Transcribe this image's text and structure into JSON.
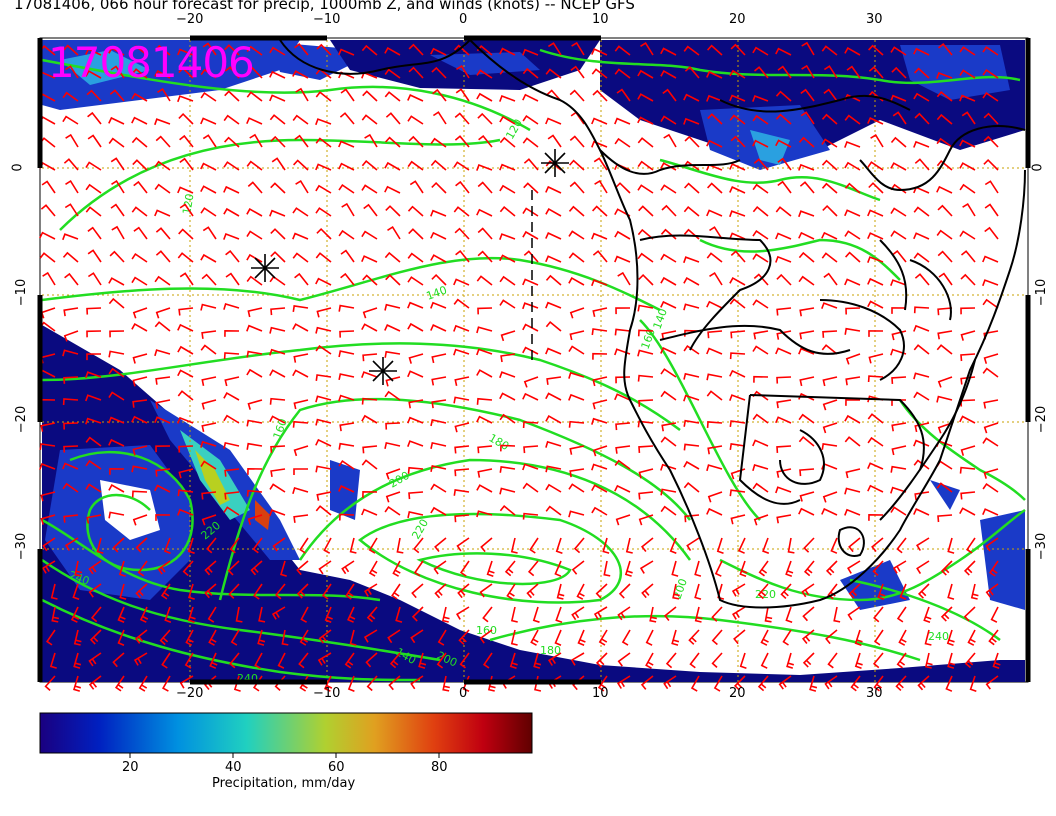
{
  "title": "17081406, 066 hour forecast for precip, 1000mb Z, and winds (knots) -- NCEP GFS",
  "stamp": "17081406",
  "top_ticks": [
    "−20",
    "−10",
    "0",
    "10",
    "20",
    "30"
  ],
  "bottom_ticks": [
    "−20",
    "−10",
    "0",
    "10",
    "20",
    "30"
  ],
  "left_ticks": [
    "0",
    "−10",
    "−20",
    "−30"
  ],
  "right_ticks": [
    "0",
    "−10",
    "−20",
    "−30"
  ],
  "colorbar": {
    "title": "Precipitation, mm/day",
    "ticks": [
      "20",
      "40",
      "60",
      "80"
    ],
    "colors": [
      "#0a0a80",
      "#1a3ac8",
      "#2aa0e0",
      "#3ad0c0",
      "#b8d020",
      "#d8a020",
      "#d84010",
      "#b01010",
      "#700000"
    ]
  },
  "contour_labels": [
    "120",
    "120",
    "140",
    "140",
    "160",
    "160",
    "180",
    "200",
    "220",
    "220",
    "240",
    "240",
    "200",
    "140",
    "160",
    "180",
    "200",
    "220",
    "240"
  ],
  "marker_icon": "asterisk-marker"
}
